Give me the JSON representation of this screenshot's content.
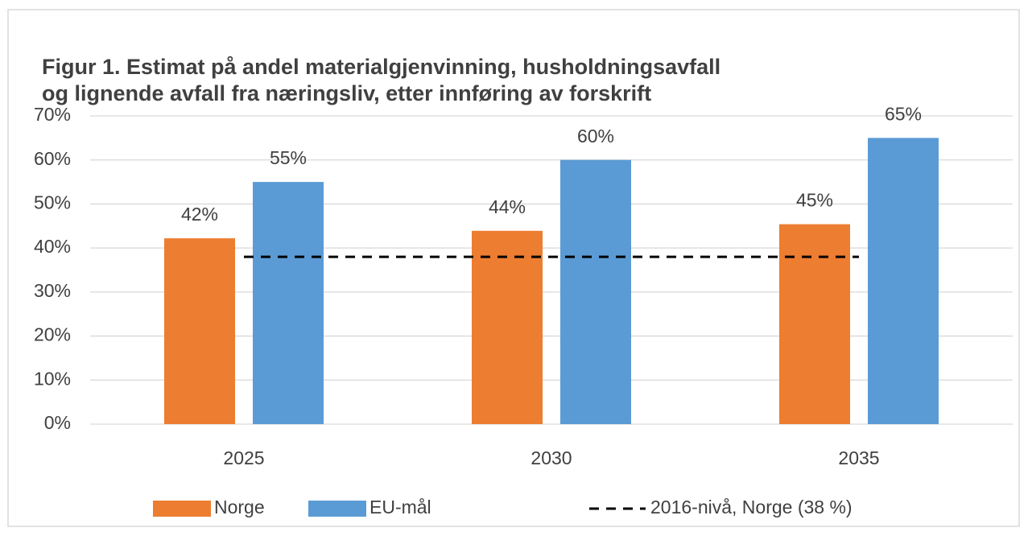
{
  "chart_data": {
    "type": "bar",
    "title": [
      "Figur 1. Estimat på andel materialgjenvinning, husholdningsavfall",
      "og lignende avfall fra næringsliv, etter innføring av forskrift"
    ],
    "categories": [
      "2025",
      "2030",
      "2035"
    ],
    "series": [
      {
        "name": "Norge",
        "color": "#ed7d31",
        "values": [
          42.2,
          43.9,
          45.4
        ],
        "value_labels": [
          "42%",
          "44%",
          "45%"
        ]
      },
      {
        "name": "EU-mål",
        "color": "#5b9bd5",
        "values": [
          55,
          60,
          65
        ],
        "value_labels": [
          "55%",
          "60%",
          "65%"
        ]
      },
      {
        "name": "2016-nivå, Norge (38 %)",
        "color": "#000000",
        "type": "line",
        "dashed": true,
        "values": [
          38,
          38,
          38
        ]
      }
    ],
    "ylim": [
      0,
      70
    ],
    "yticks": [
      {
        "value": 0,
        "label": "0%"
      },
      {
        "value": 10,
        "label": "10%"
      },
      {
        "value": 20,
        "label": "20%"
      },
      {
        "value": 30,
        "label": "30%"
      },
      {
        "value": 40,
        "label": "40%"
      },
      {
        "value": 50,
        "label": "50%"
      },
      {
        "value": 60,
        "label": "60%"
      },
      {
        "value": 70,
        "label": "70%"
      }
    ],
    "grid": true,
    "legend": "bottom"
  }
}
